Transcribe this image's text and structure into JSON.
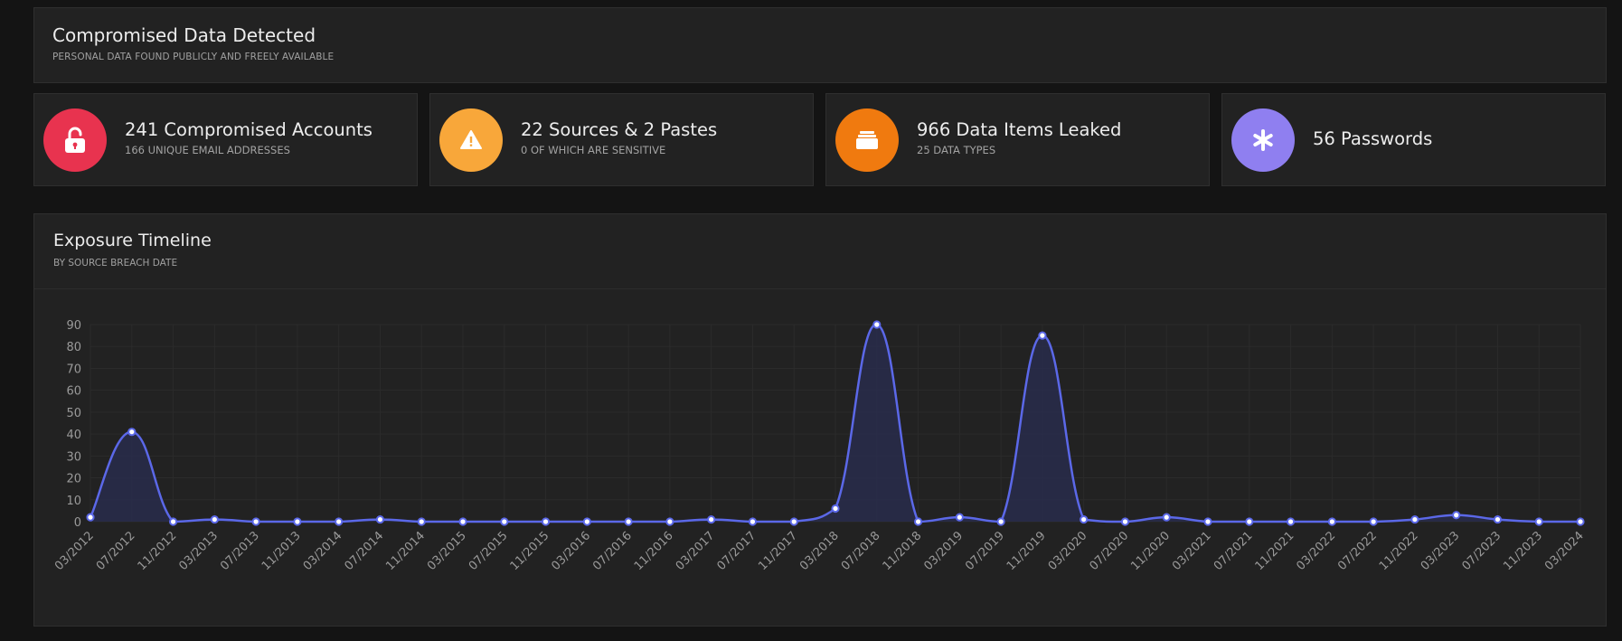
{
  "header": {
    "title": "Compromised Data Detected",
    "subtitle": "PERSONAL DATA FOUND PUBLICLY AND FREELY AVAILABLE"
  },
  "stats": [
    {
      "title": "241 Compromised Accounts",
      "subtitle": "166 UNIQUE EMAIL ADDRESSES",
      "icon": "unlock-icon",
      "color": "#e8334f"
    },
    {
      "title": "22 Sources & 2 Pastes",
      "subtitle": "0 OF WHICH ARE SENSITIVE",
      "icon": "warning-icon",
      "color": "#f8a73a"
    },
    {
      "title": "966 Data Items Leaked",
      "subtitle": "25 DATA TYPES",
      "icon": "stack-icon",
      "color": "#f07a0f"
    },
    {
      "title": "56 Passwords",
      "subtitle": "",
      "icon": "asterisk-icon",
      "color": "#8f7ff0"
    }
  ],
  "timeline": {
    "title": "Exposure Timeline",
    "subtitle": "BY SOURCE BREACH DATE"
  },
  "chart_data": {
    "type": "area",
    "title": "Exposure Timeline",
    "subtitle": "BY SOURCE BREACH DATE",
    "line_color": "#5b68e8",
    "fill_color": "#2a2d52",
    "ylim": [
      0,
      90
    ],
    "yticks": [
      0,
      10,
      20,
      30,
      40,
      50,
      60,
      70,
      80,
      90
    ],
    "grid": true,
    "categories": [
      "03/2012",
      "07/2012",
      "11/2012",
      "03/2013",
      "07/2013",
      "11/2013",
      "03/2014",
      "07/2014",
      "11/2014",
      "03/2015",
      "07/2015",
      "11/2015",
      "03/2016",
      "07/2016",
      "11/2016",
      "03/2017",
      "07/2017",
      "11/2017",
      "03/2018",
      "07/2018",
      "11/2018",
      "03/2019",
      "07/2019",
      "11/2019",
      "03/2020",
      "07/2020",
      "11/2020",
      "03/2021",
      "07/2021",
      "11/2021",
      "03/2022",
      "07/2022",
      "11/2022",
      "03/2023",
      "07/2023",
      "11/2023",
      "03/2024"
    ],
    "values": [
      2,
      41,
      0,
      1,
      0,
      0,
      0,
      1,
      0,
      0,
      0,
      0,
      0,
      0,
      0,
      1,
      0,
      0,
      6,
      90,
      0,
      2,
      0,
      85,
      1,
      0,
      2,
      0,
      0,
      0,
      0,
      0,
      1,
      3,
      1,
      0,
      0
    ]
  }
}
